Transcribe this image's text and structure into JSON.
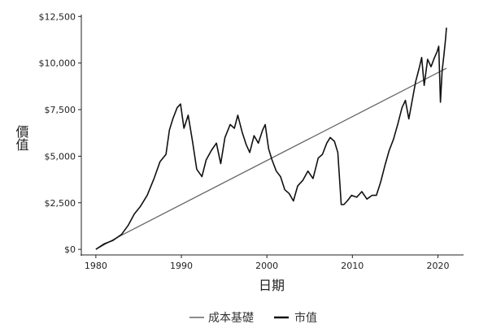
{
  "chart_data": {
    "type": "line",
    "title": "",
    "xlabel": "日期",
    "ylabel": "價值",
    "xlim": [
      1978.3,
      2023.0
    ],
    "ylim": [
      -300,
      12600
    ],
    "x_ticks": [
      1980,
      1990,
      2000,
      2010,
      2020
    ],
    "x_tick_labels": [
      "1980",
      "1990",
      "2000",
      "2010",
      "2020"
    ],
    "y_ticks": [
      0,
      2500,
      5000,
      7500,
      10000,
      12500
    ],
    "y_tick_labels": [
      "$0",
      "$2,500",
      "$5,000",
      "$7,500",
      "$10,000",
      "$12,500"
    ],
    "grid": false,
    "legend_position": "bottom",
    "series": [
      {
        "name": "成本基礎",
        "color": "#666666",
        "x": [
          1980.0,
          1982.5,
          2021.0
        ],
        "y": [
          0,
          640,
          9720
        ]
      },
      {
        "name": "市值",
        "color": "#111111",
        "x": [
          1980.0,
          1981.0,
          1982.0,
          1983.0,
          1983.8,
          1984.5,
          1985.2,
          1986.0,
          1986.8,
          1987.5,
          1988.2,
          1988.6,
          1989.0,
          1989.5,
          1989.9,
          1990.3,
          1990.8,
          1991.3,
          1991.8,
          1992.4,
          1992.9,
          1993.5,
          1994.1,
          1994.6,
          1995.1,
          1995.7,
          1996.2,
          1996.6,
          1997.1,
          1997.6,
          1998.0,
          1998.5,
          1999.0,
          1999.5,
          1999.8,
          2000.2,
          2000.6,
          2001.1,
          2001.6,
          2002.1,
          2002.6,
          2003.1,
          2003.6,
          2004.2,
          2004.8,
          2005.4,
          2006.0,
          2006.5,
          2007.0,
          2007.4,
          2007.9,
          2008.3,
          2008.7,
          2009.0,
          2009.4,
          2009.9,
          2010.5,
          2011.1,
          2011.7,
          2012.3,
          2012.8,
          2013.3,
          2013.8,
          2014.3,
          2014.8,
          2015.3,
          2015.8,
          2016.2,
          2016.6,
          2017.0,
          2017.4,
          2017.8,
          2018.1,
          2018.4,
          2018.8,
          2019.2,
          2019.6,
          2019.9,
          2020.1,
          2020.3,
          2020.5,
          2020.7,
          2020.9,
          2021.0
        ],
        "y": [
          0,
          300,
          480,
          800,
          1300,
          1900,
          2300,
          2900,
          3800,
          4700,
          5100,
          6400,
          7000,
          7600,
          7800,
          6500,
          7200,
          5800,
          4300,
          3900,
          4800,
          5300,
          5700,
          4600,
          6000,
          6700,
          6500,
          7200,
          6300,
          5600,
          5200,
          6100,
          5700,
          6400,
          6700,
          5400,
          4800,
          4200,
          3900,
          3200,
          3000,
          2600,
          3400,
          3700,
          4200,
          3800,
          4900,
          5100,
          5700,
          6000,
          5800,
          5200,
          2400,
          2400,
          2600,
          2900,
          2800,
          3100,
          2700,
          2900,
          2900,
          3600,
          4500,
          5300,
          5900,
          6700,
          7600,
          8000,
          7000,
          8000,
          9000,
          9700,
          10300,
          8800,
          10200,
          9800,
          10300,
          10600,
          10900,
          7900,
          9600,
          10400,
          11300,
          11900
        ]
      }
    ]
  }
}
